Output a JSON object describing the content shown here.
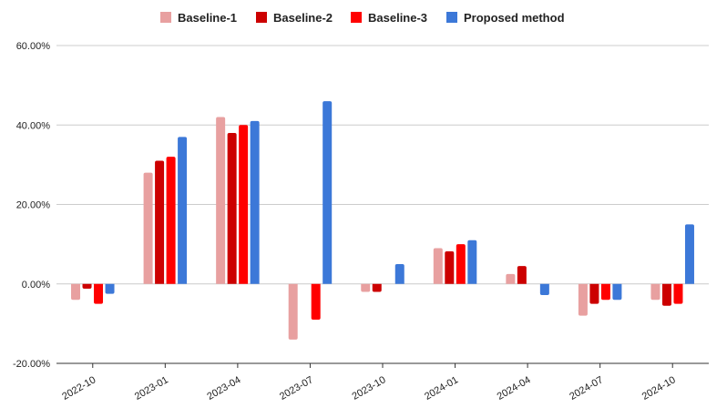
{
  "chart_data": {
    "type": "bar",
    "categories": [
      "2022-10",
      "2023-01",
      "2023-04",
      "2023-07",
      "2023-10",
      "2024-01",
      "2024-04",
      "2024-07",
      "2024-10"
    ],
    "series": [
      {
        "name": "Baseline-1",
        "color": "#e8a0a0",
        "values": [
          -4,
          28,
          42,
          -14,
          -2,
          9,
          2.5,
          -8,
          -4
        ]
      },
      {
        "name": "Baseline-2",
        "color": "#cc0000",
        "values": [
          -1.2,
          31,
          38,
          null,
          -2,
          8.2,
          4.5,
          -5,
          -5.5
        ]
      },
      {
        "name": "Baseline-3",
        "color": "#ff0000",
        "values": [
          -5,
          32,
          40,
          -9,
          null,
          10,
          null,
          -4,
          -5
        ]
      },
      {
        "name": "Proposed method",
        "color": "#3c78d8",
        "values": [
          -2.5,
          37,
          41,
          46,
          5,
          11,
          -2.8,
          -4,
          15
        ]
      }
    ],
    "ylim": [
      -20,
      60
    ],
    "yticks": [
      "-20.00%",
      "0.00%",
      "20.00%",
      "40.00%",
      "60.00%"
    ],
    "ytick_values": [
      -20,
      0,
      20,
      40,
      60
    ],
    "grid": true,
    "legend": "top-center"
  }
}
